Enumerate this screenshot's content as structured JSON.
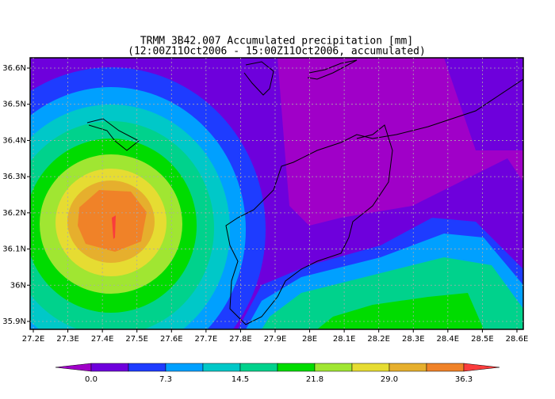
{
  "title": [
    "TRMM 3B42.007 Accumulated precipitation [mm]",
    "(12:00Z11Oct2006 - 15:00Z11Oct2006, accumulated)"
  ],
  "x_ticks": [
    "27.2E",
    "27.3E",
    "27.4E",
    "27.5E",
    "27.6E",
    "27.7E",
    "27.8E",
    "27.9E",
    "28E",
    "28.1E",
    "28.2E",
    "28.3E",
    "28.4E",
    "28.5E",
    "28.6E"
  ],
  "y_ticks": [
    "36.6N",
    "36.5N",
    "36.4N",
    "36.3N",
    "36.2N",
    "36.1N",
    "36N",
    "35.9N"
  ],
  "colorbar": {
    "labels": [
      "0.0",
      "7.3",
      "14.5",
      "21.8",
      "29.0",
      "36.3"
    ],
    "colors": [
      "#a000c8",
      "#6e00dc",
      "#1e3cff",
      "#00a0ff",
      "#00c8c8",
      "#00d28c",
      "#00dc00",
      "#a0e632",
      "#e6dc32",
      "#e6af2d",
      "#f08228",
      "#fa3c3c"
    ]
  }
}
